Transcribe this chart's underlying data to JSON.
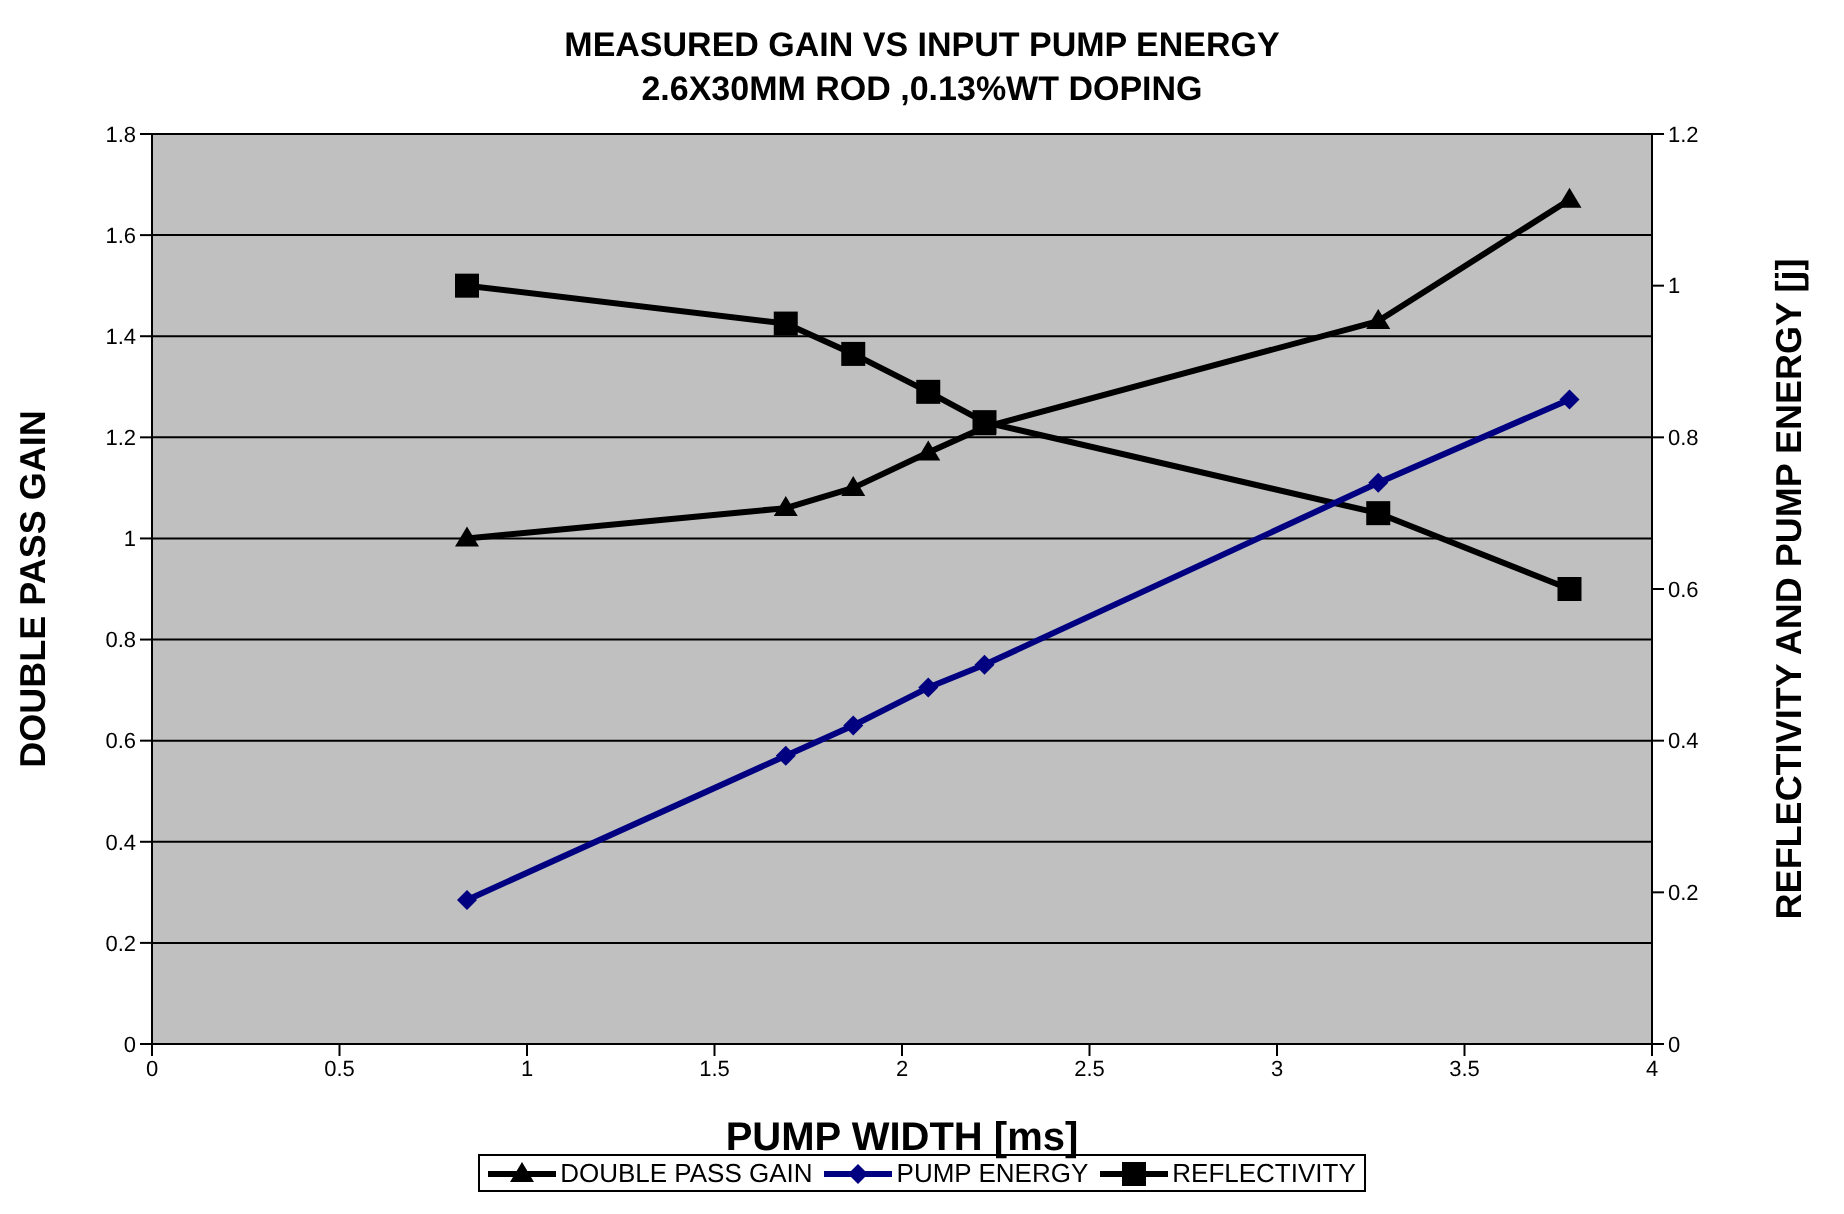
{
  "chart_data": {
    "type": "line",
    "title": "MEASURED GAIN VS INPUT PUMP ENERGY",
    "subtitle": "2.6X30MM ROD ,0.13%WT DOPING",
    "xlabel": "PUMP WIDTH [ms]",
    "ylabel": "DOUBLE PASS GAIN",
    "y2label": "REFLECTIVITY AND PUMP ENERGY [j]",
    "x": [
      0.84,
      1.69,
      1.87,
      2.07,
      2.22,
      3.27,
      3.78
    ],
    "series": [
      {
        "name": "DOUBLE PASS GAIN",
        "color": "#000000",
        "marker": "triangle",
        "values": [
          1.0,
          1.06,
          1.1,
          1.17,
          1.22,
          1.43,
          1.67
        ]
      },
      {
        "name": "PUMP ENERGY",
        "color": "#000080",
        "marker": "diamond",
        "axis": "y2",
        "values": [
          0.19,
          0.38,
          0.42,
          0.47,
          0.5,
          0.74,
          0.85
        ]
      },
      {
        "name": "REFLECTIVITY",
        "color": "#000000",
        "marker": "square",
        "axis": "y2",
        "values": [
          1.0,
          0.95,
          0.91,
          0.86,
          0.82,
          0.7,
          0.6
        ]
      }
    ],
    "xlim": [
      0,
      4
    ],
    "xticks": [
      0,
      0.5,
      1,
      1.5,
      2,
      2.5,
      3,
      3.5,
      4
    ],
    "ylim": [
      0,
      1.8
    ],
    "yticks": [
      0,
      0.2,
      0.4,
      0.6,
      0.8,
      1,
      1.2,
      1.4,
      1.6,
      1.8
    ],
    "y2lim": [
      0,
      1.2
    ],
    "y2ticks": [
      0,
      0.2,
      0.4,
      0.6,
      0.8,
      1,
      1.2
    ],
    "grid": "y",
    "legend": "bottom",
    "line_style": "solid"
  }
}
